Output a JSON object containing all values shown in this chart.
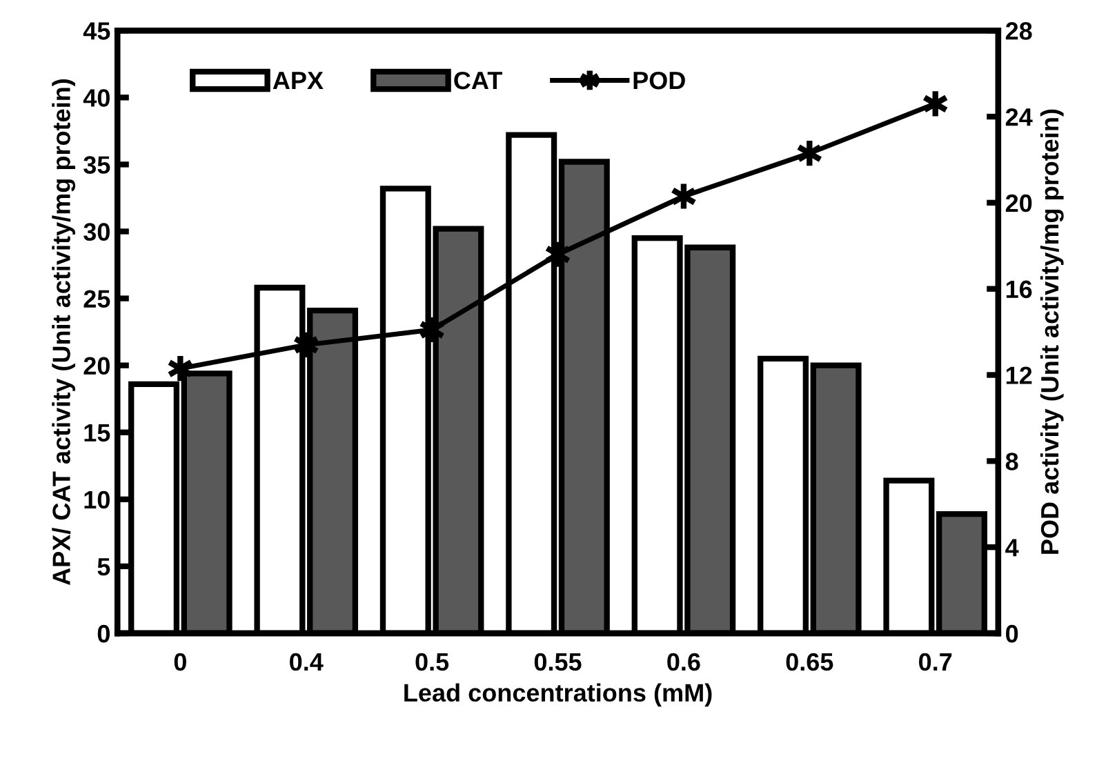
{
  "chart_data": {
    "type": "bar",
    "xlabel": "Lead concentrations (mM)",
    "ylabel": "APX/ CAT activity (Unit activity/mg protein)",
    "y2label": "POD activity (Unit activity/mg protein)",
    "categories": [
      "0",
      "0.4",
      "0.5",
      "0.55",
      "0.6",
      "0.65",
      "0.7"
    ],
    "series": [
      {
        "name": "APX",
        "color": "#ffffff",
        "values": [
          18.6,
          25.8,
          33.2,
          37.2,
          29.5,
          20.5,
          11.4
        ]
      },
      {
        "name": "CAT",
        "color": "#595959",
        "values": [
          19.4,
          24.1,
          30.2,
          35.2,
          28.8,
          20.0,
          8.9
        ]
      },
      {
        "name": "POD",
        "type": "line",
        "axis": "y2",
        "color": "#000000",
        "marker": "cross",
        "line_style": "solid",
        "values": [
          12.3,
          13.4,
          14.1,
          17.6,
          20.3,
          22.3,
          24.6
        ]
      }
    ],
    "ylim": [
      0,
      45
    ],
    "yticks": [
      0,
      5,
      10,
      15,
      20,
      25,
      30,
      35,
      40,
      45
    ],
    "y2lim": [
      0,
      28
    ],
    "y2ticks": [
      0,
      4,
      8,
      12,
      16,
      20,
      24,
      28
    ],
    "legend": "top left",
    "grid": false
  }
}
